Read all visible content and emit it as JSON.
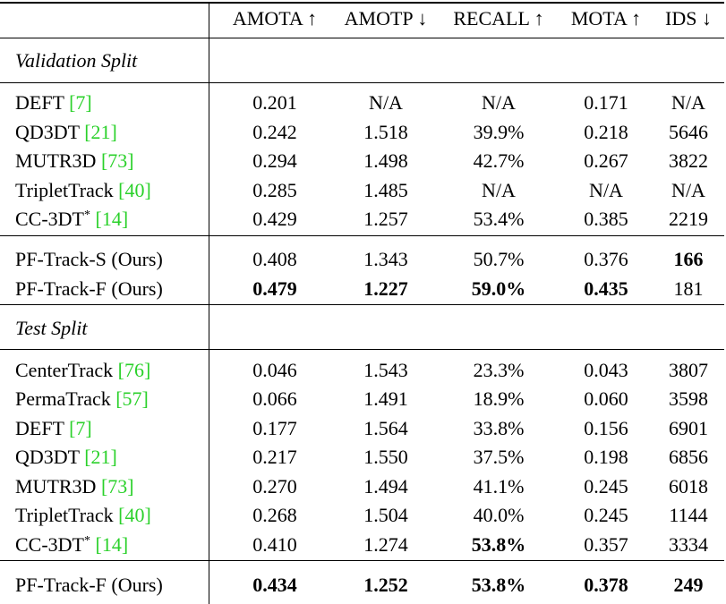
{
  "header": {
    "columns": [
      "AMOTA ↑",
      "AMOTP ↓",
      "RECALL ↑",
      "MOTA ↑",
      "IDS ↓"
    ]
  },
  "sections": [
    {
      "title": "Validation Split",
      "groups": [
        [
          {
            "method": "DEFT",
            "ref": "[7]",
            "values": [
              "0.201",
              "N/A",
              "N/A",
              "0.171",
              "N/A"
            ]
          },
          {
            "method": "QD3DT",
            "ref": "[21]",
            "values": [
              "0.242",
              "1.518",
              "39.9%",
              "0.218",
              "5646"
            ]
          },
          {
            "method": "MUTR3D",
            "ref": "[73]",
            "values": [
              "0.294",
              "1.498",
              "42.7%",
              "0.267",
              "3822"
            ]
          },
          {
            "method": "TripletTrack",
            "ref": "[40]",
            "values": [
              "0.285",
              "1.485",
              "N/A",
              "N/A",
              "N/A"
            ]
          },
          {
            "method": "CC-3DT",
            "sup": "*",
            "ref": "[14]",
            "values": [
              "0.429",
              "1.257",
              "53.4%",
              "0.385",
              "2219"
            ]
          }
        ],
        [
          {
            "method": "PF-Track-S (Ours)",
            "values": [
              "0.408",
              "1.343",
              "50.7%",
              "0.376",
              "166"
            ],
            "bold": [
              4
            ]
          },
          {
            "method": "PF-Track-F (Ours)",
            "values": [
              "0.479",
              "1.227",
              "59.0%",
              "0.435",
              "181"
            ],
            "bold": [
              0,
              1,
              2,
              3
            ]
          }
        ]
      ]
    },
    {
      "title": "Test Split",
      "groups": [
        [
          {
            "method": "CenterTrack",
            "ref": "[76]",
            "values": [
              "0.046",
              "1.543",
              "23.3%",
              "0.043",
              "3807"
            ]
          },
          {
            "method": "PermaTrack",
            "ref": "[57]",
            "values": [
              "0.066",
              "1.491",
              "18.9%",
              "0.060",
              "3598"
            ]
          },
          {
            "method": "DEFT",
            "ref": "[7]",
            "values": [
              "0.177",
              "1.564",
              "33.8%",
              "0.156",
              "6901"
            ]
          },
          {
            "method": "QD3DT",
            "ref": "[21]",
            "values": [
              "0.217",
              "1.550",
              "37.5%",
              "0.198",
              "6856"
            ]
          },
          {
            "method": "MUTR3D",
            "ref": "[73]",
            "values": [
              "0.270",
              "1.494",
              "41.1%",
              "0.245",
              "6018"
            ]
          },
          {
            "method": "TripletTrack",
            "ref": "[40]",
            "values": [
              "0.268",
              "1.504",
              "40.0%",
              "0.245",
              "1144"
            ]
          },
          {
            "method": "CC-3DT",
            "sup": "*",
            "ref": "[14]",
            "values": [
              "0.410",
              "1.274",
              "53.8%",
              "0.357",
              "3334"
            ],
            "bold": [
              2
            ]
          }
        ],
        [
          {
            "method": "PF-Track-F (Ours)",
            "values": [
              "0.434",
              "1.252",
              "53.8%",
              "0.378",
              "249"
            ],
            "bold": [
              0,
              1,
              2,
              3,
              4
            ]
          }
        ]
      ]
    }
  ]
}
